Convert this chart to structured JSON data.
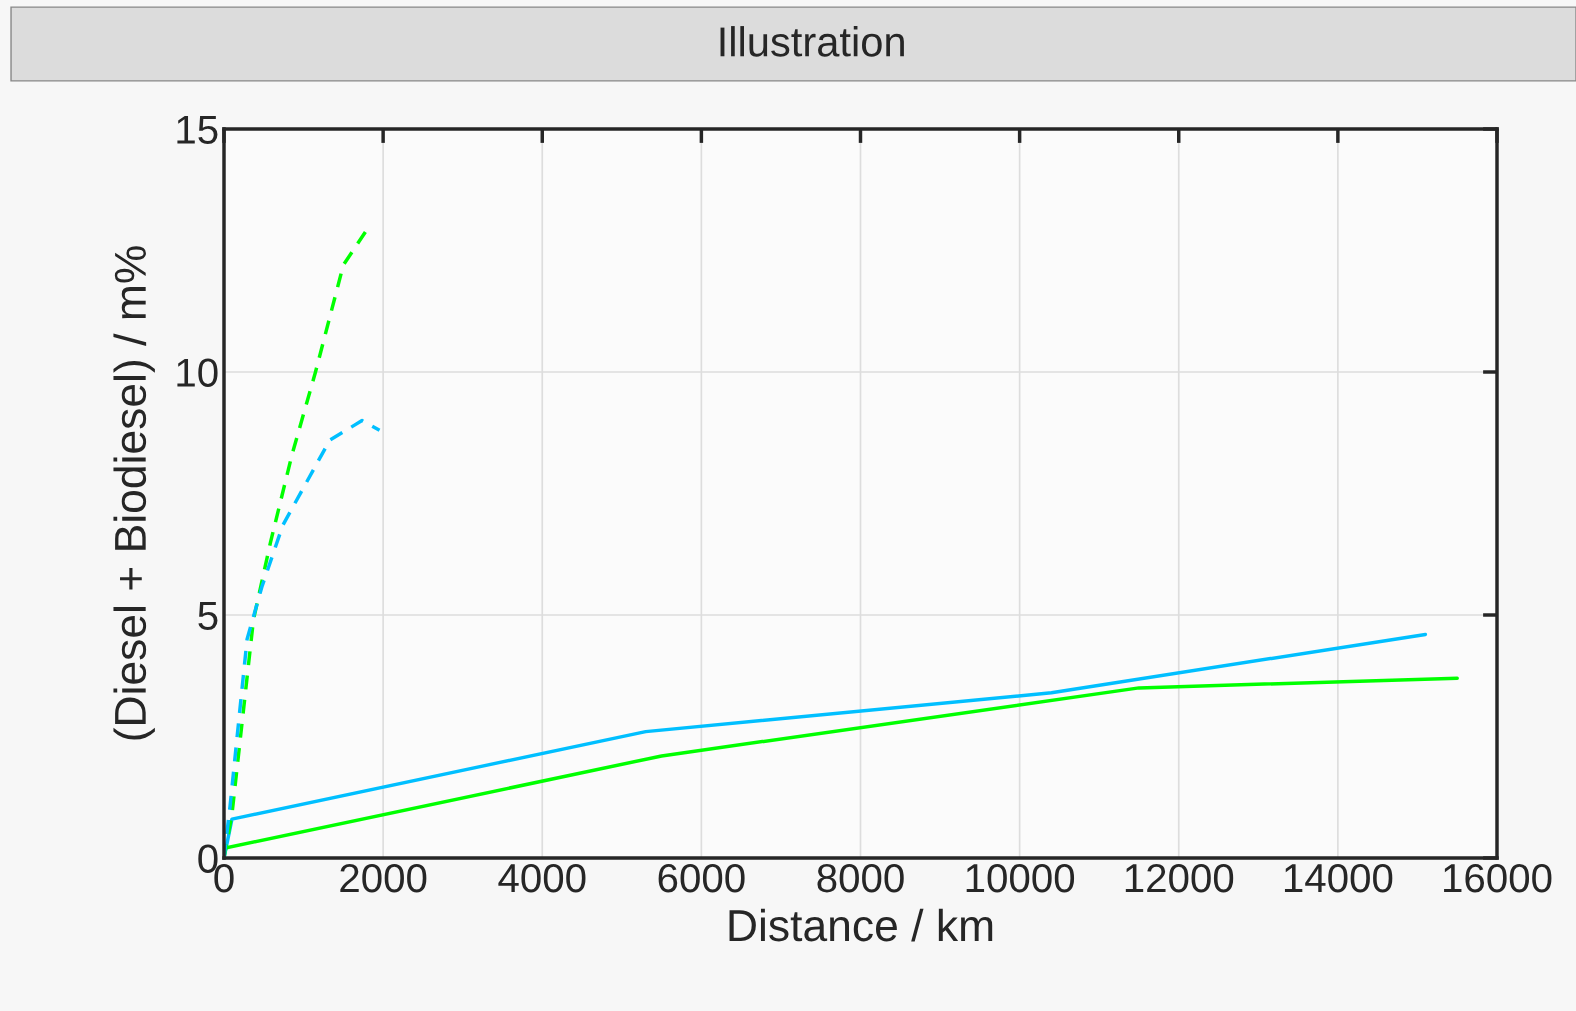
{
  "chart_data": {
    "type": "line",
    "title": "Illustration",
    "xlabel": "Distance / km",
    "ylabel": "(Diesel + Biodiesel) / m%",
    "xlim": [
      0,
      16000
    ],
    "ylim": [
      0,
      15
    ],
    "xticks": [
      0,
      2000,
      4000,
      6000,
      8000,
      10000,
      12000,
      14000,
      16000
    ],
    "yticks": [
      0,
      5,
      10,
      15
    ],
    "grid": true,
    "series": [
      {
        "color": "#00bfff",
        "line_style": "solid",
        "x": [
          0,
          100,
          5300,
          10400,
          15100
        ],
        "values": [
          0,
          0.8,
          2.6,
          3.4,
          4.6
        ]
      },
      {
        "color": "#00ff00",
        "line_style": "solid",
        "x": [
          0,
          5500,
          11500,
          15500
        ],
        "values": [
          0.2,
          2.1,
          3.5,
          3.7
        ]
      },
      {
        "color": "#00ff00",
        "line_style": "dashed",
        "x": [
          0,
          100,
          370,
          585,
          855,
          1150,
          1500,
          1785
        ],
        "values": [
          0,
          0.9,
          4.9,
          6.5,
          8.3,
          10.0,
          12.2,
          12.9
        ]
      },
      {
        "color": "#00bfff",
        "line_style": "dashed",
        "x": [
          0,
          75,
          290,
          480,
          740,
          1330,
          1735,
          1955
        ],
        "values": [
          0,
          1.05,
          4.5,
          5.6,
          6.85,
          8.6,
          9.0,
          8.8
        ]
      }
    ]
  }
}
